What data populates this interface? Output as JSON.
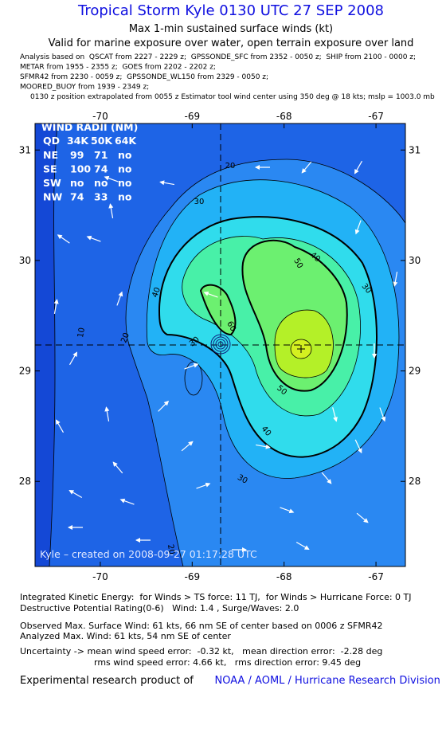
{
  "header": {
    "title": "Tropical Storm Kyle 0130 UTC 27 SEP 2008",
    "subtitle": "Max 1-min sustained surface winds (kt)",
    "validity": "Valid for marine exposure over water, open terrain exposure over land",
    "analysis_notes": [
      "Analysis based on  QSCAT from 2227 - 2229 z;  GPSSONDE_SFC from 2352 - 0050 z;  SHIP from 2100 - 0000 z;",
      "METAR from 1955 - 2355 z;  GOES from 2202 - 2202 z;",
      "SFMR42 from 2230 - 0059 z;  GPSSONDE_WL150 from 2329 - 0050 z;",
      "MOORED_BUOY from 1939 - 2349 z;",
      "0130 z position extrapolated from 0055 z Estimator tool wind center using 350 deg @ 18 kts; mslp = 1003.0 mb"
    ]
  },
  "map": {
    "xlim": [
      -70.71,
      -66.68
    ],
    "ylim": [
      27.23,
      31.24
    ],
    "xticks": [
      -70,
      -69,
      -68,
      -67
    ],
    "yticks": [
      28,
      29,
      30,
      31
    ],
    "contour_labels": [
      10,
      20,
      20,
      20,
      30,
      30,
      30,
      30,
      40,
      40,
      40,
      50,
      50,
      60
    ],
    "credit": "Kyle – created on 2008-09-27 01:17:28 UTC",
    "wind_radii": {
      "title": "WIND RADII (NM)",
      "header": [
        "QD",
        "34K",
        "50K",
        "64K"
      ],
      "rows": [
        [
          "NE",
          99,
          71,
          "no"
        ],
        [
          "SE",
          100,
          74,
          "no"
        ],
        [
          "SW",
          "no",
          "no",
          "no"
        ],
        [
          "NW",
          74,
          33,
          "no"
        ]
      ]
    }
  },
  "footer": {
    "metrics": [
      "Integrated Kinetic Energy:  for Winds > TS force: 11 TJ,  for Winds > Hurricane Force: 0 TJ",
      "Destructive Potential Rating(0-6)   Wind: 1.4 , Surge/Waves: 2.0",
      "Observed Max. Surface Wind: 61 kts, 66 nm SE of center based on 0006 z SFMR42",
      "Analyzed Max. Wind: 61 kts, 54 nm SE of center",
      "Uncertainty -> mean wind speed error:  -0.32 kt,   mean direction error:  -2.28 deg",
      "rms wind speed error: 4.66 kt,   rms direction error: 9.45 deg"
    ],
    "attribution_prefix": "Experimental research product of",
    "attribution_link": "NOAA / AOML / Hurricane Research Division"
  }
}
